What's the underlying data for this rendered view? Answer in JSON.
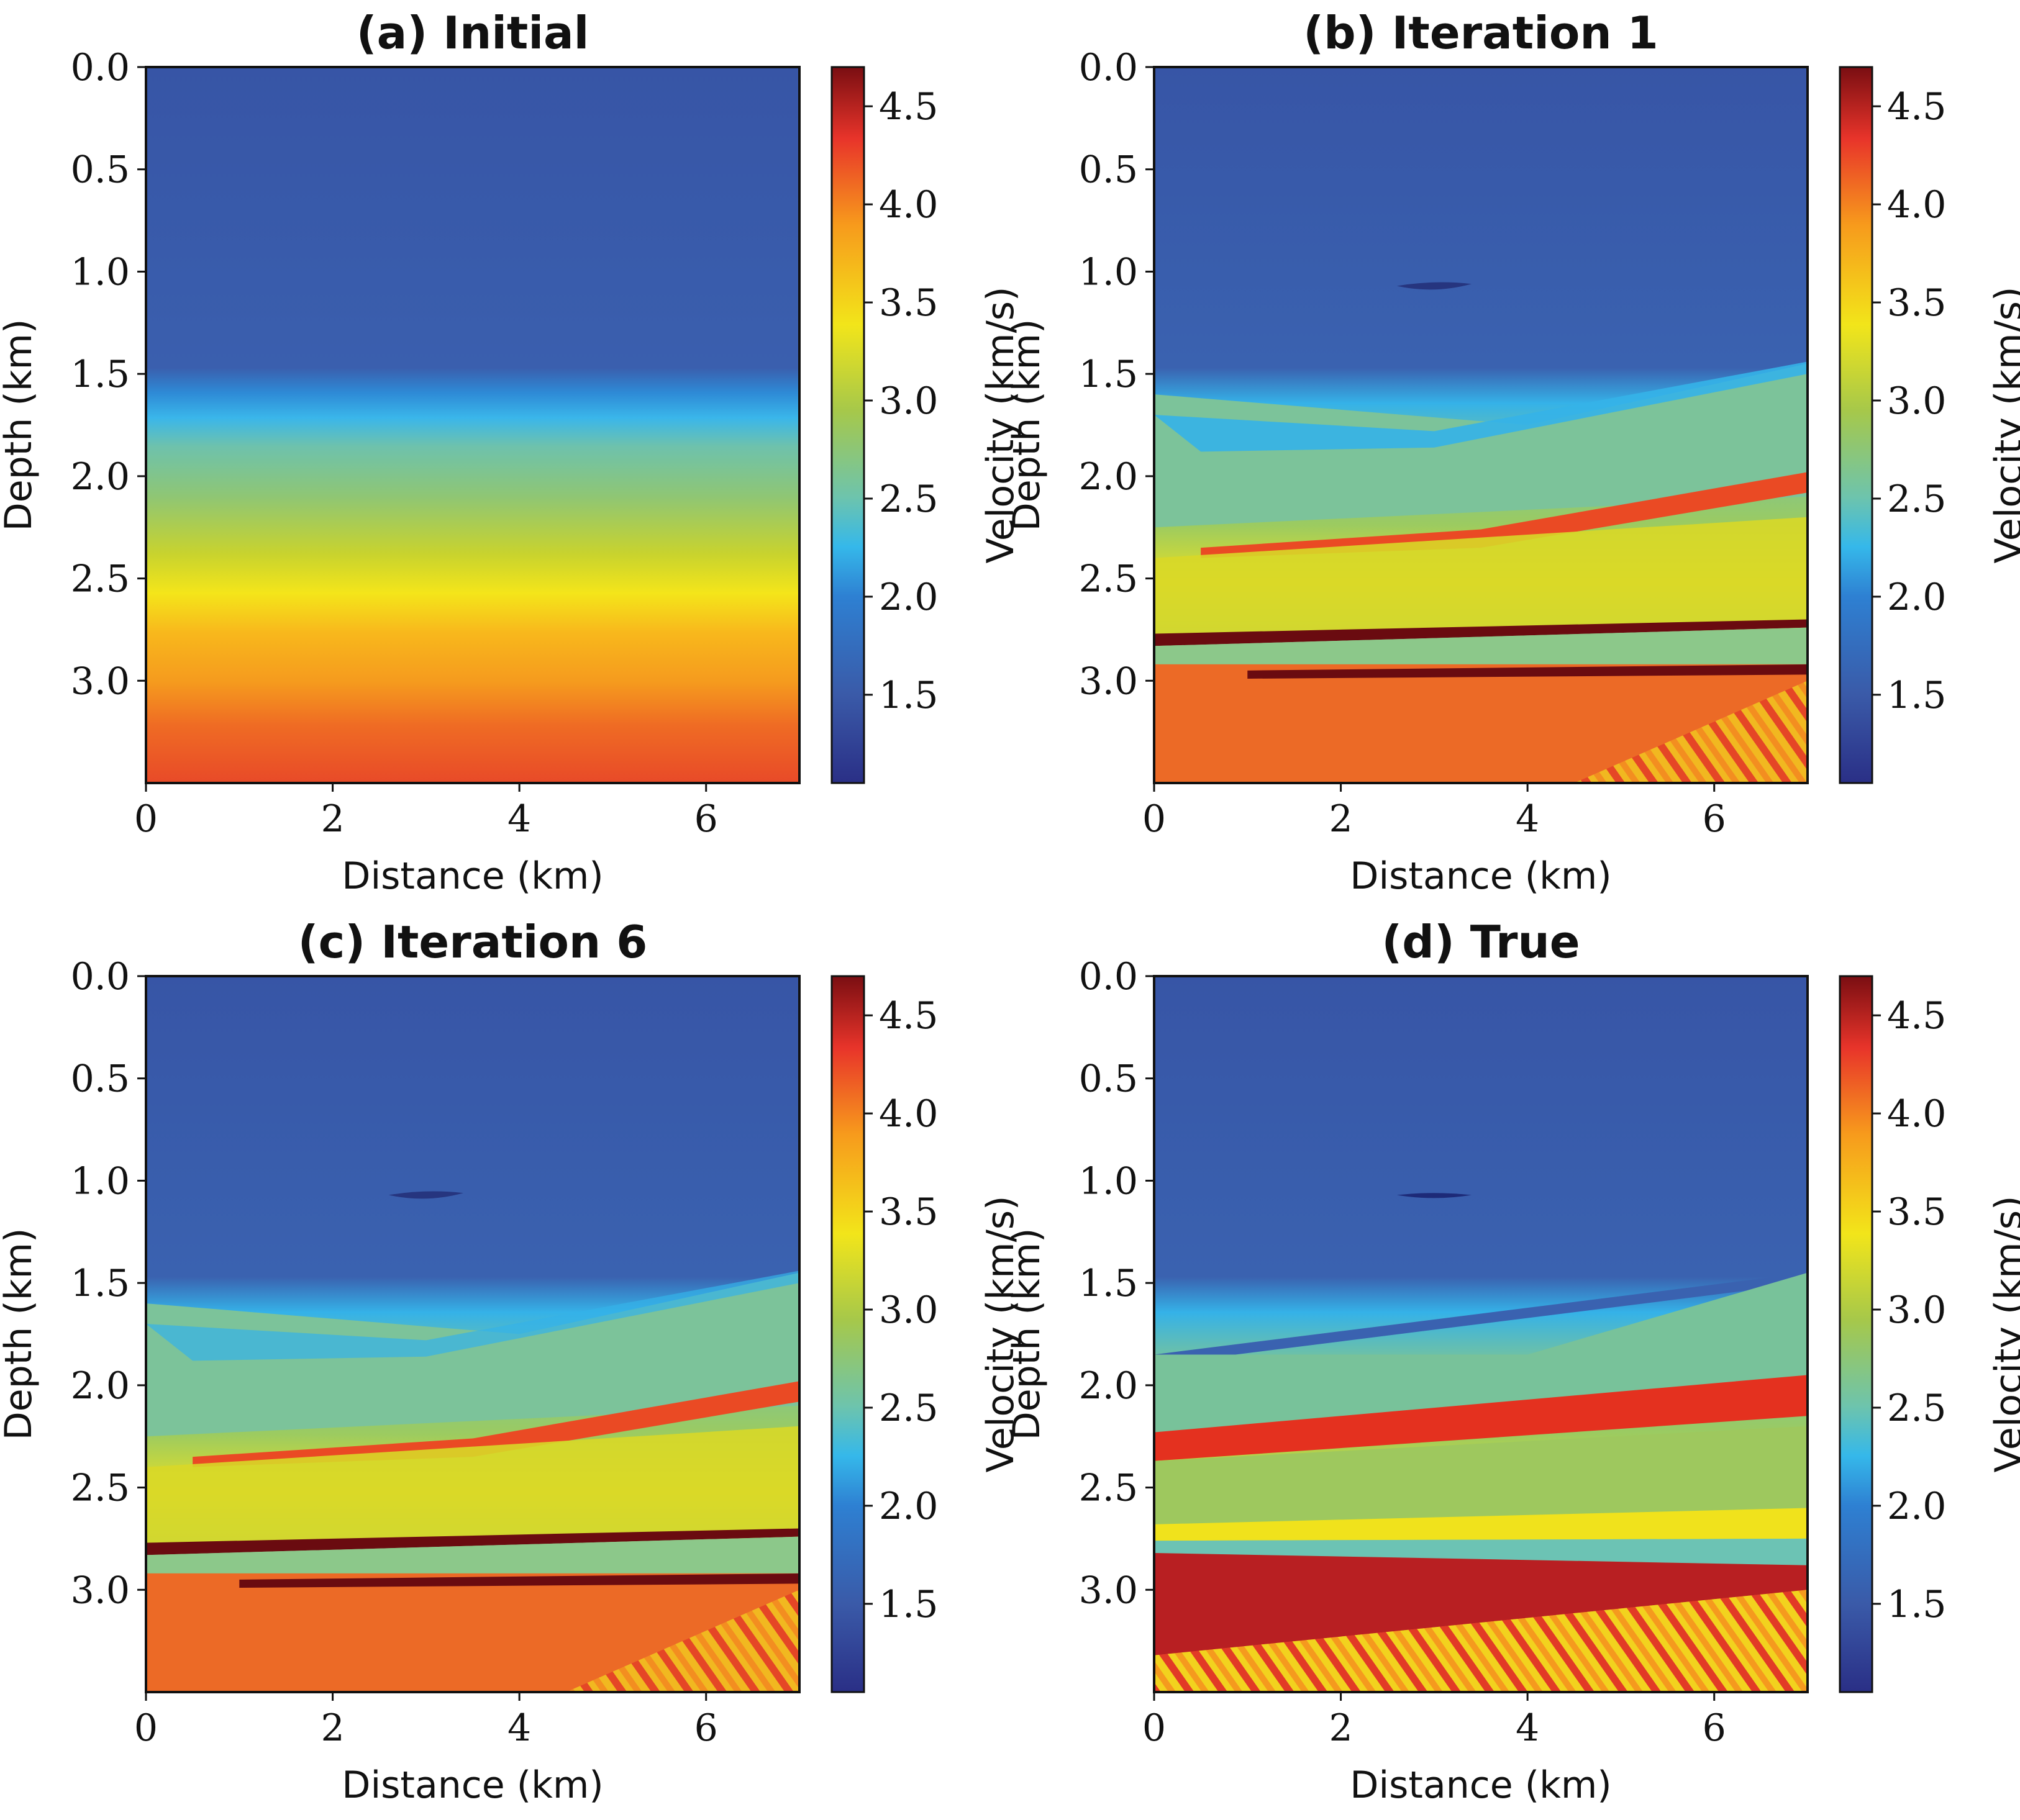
{
  "figure": {
    "panels": [
      {
        "title": "(a) Initial"
      },
      {
        "title": "(b) Iteration 1"
      },
      {
        "title": "(c) Iteration 6"
      },
      {
        "title": "(d) True"
      }
    ],
    "xlabel": "Distance (km)",
    "ylabel": "Depth (km)",
    "colorbar_label": "Velocity (km/s)"
  },
  "chart_data": [
    {
      "type": "heatmap",
      "title": "(a) Initial",
      "xlabel": "Distance (km)",
      "ylabel": "Depth (km)",
      "xlim": [
        0,
        7
      ],
      "ylim": [
        3.5,
        0
      ],
      "xticks": [
        0,
        2,
        4,
        6
      ],
      "yticks": [
        0.0,
        0.5,
        1.0,
        1.5,
        2.0,
        2.5,
        3.0
      ],
      "xtick_labels": [
        "0",
        "2",
        "4",
        "6"
      ],
      "ytick_labels": [
        "0.0",
        "0.5",
        "1.0",
        "1.5",
        "2.0",
        "2.5",
        "3.0"
      ],
      "colormap": "jet-like",
      "colorbar": {
        "label": "Velocity (km/s)",
        "range": [
          1.05,
          4.7
        ],
        "ticks": [
          1.5,
          2.0,
          2.5,
          3.0,
          3.5,
          4.0,
          4.5
        ],
        "tick_labels": [
          "1.5",
          "2.0",
          "2.5",
          "3.0",
          "3.5",
          "4.0",
          "4.5"
        ]
      },
      "velocity_profile": {
        "depth_km": [
          0.0,
          1.5,
          1.75,
          2.0,
          2.5,
          3.0,
          3.4,
          3.5
        ],
        "velocity_km_s": [
          1.6,
          1.6,
          2.3,
          2.9,
          3.5,
          3.9,
          4.2,
          4.2
        ]
      }
    },
    {
      "type": "heatmap",
      "title": "(b) Iteration 1",
      "xlabel": "Distance (km)",
      "ylabel": "Depth (km)",
      "xlim": [
        0,
        7
      ],
      "ylim": [
        3.5,
        0
      ],
      "xticks": [
        0,
        2,
        4,
        6
      ],
      "yticks": [
        0.0,
        0.5,
        1.0,
        1.5,
        2.0,
        2.5,
        3.0
      ],
      "xtick_labels": [
        "0",
        "2",
        "4",
        "6"
      ],
      "ytick_labels": [
        "0.0",
        "0.5",
        "1.0",
        "1.5",
        "2.0",
        "2.5",
        "3.0"
      ],
      "colormap": "jet-like",
      "colorbar": {
        "label": "Velocity (km/s)",
        "range": [
          1.05,
          4.7
        ],
        "ticks": [
          1.5,
          2.0,
          2.5,
          3.0,
          3.5,
          4.0,
          4.5
        ],
        "tick_labels": [
          "1.5",
          "2.0",
          "2.5",
          "3.0",
          "3.5",
          "4.0",
          "4.5"
        ]
      }
    },
    {
      "type": "heatmap",
      "title": "(c) Iteration 6",
      "xlabel": "Distance (km)",
      "ylabel": "Depth (km)",
      "xlim": [
        0,
        7
      ],
      "ylim": [
        3.5,
        0
      ],
      "xticks": [
        0,
        2,
        4,
        6
      ],
      "yticks": [
        0.0,
        0.5,
        1.0,
        1.5,
        2.0,
        2.5,
        3.0
      ],
      "xtick_labels": [
        "0",
        "2",
        "4",
        "6"
      ],
      "ytick_labels": [
        "0.0",
        "0.5",
        "1.0",
        "1.5",
        "2.0",
        "2.5",
        "3.0"
      ],
      "colormap": "jet-like",
      "colorbar": {
        "label": "Velocity (km/s)",
        "range": [
          1.05,
          4.7
        ],
        "ticks": [
          1.5,
          2.0,
          2.5,
          3.0,
          3.5,
          4.0,
          4.5
        ],
        "tick_labels": [
          "1.5",
          "2.0",
          "2.5",
          "3.0",
          "3.5",
          "4.0",
          "4.5"
        ]
      }
    },
    {
      "type": "heatmap",
      "title": "(d) True",
      "xlabel": "Distance (km)",
      "ylabel": "Depth (km)",
      "xlim": [
        0,
        7
      ],
      "ylim": [
        3.5,
        0
      ],
      "xticks": [
        0,
        2,
        4,
        6
      ],
      "yticks": [
        0.0,
        0.5,
        1.0,
        1.5,
        2.0,
        2.5,
        3.0
      ],
      "xtick_labels": [
        "0",
        "2",
        "4",
        "6"
      ],
      "ytick_labels": [
        "0.0",
        "0.5",
        "1.0",
        "1.5",
        "2.0",
        "2.5",
        "3.0"
      ],
      "colormap": "jet-like",
      "colorbar": {
        "label": "Velocity (km/s)",
        "range": [
          1.05,
          4.7
        ],
        "ticks": [
          1.5,
          2.0,
          2.5,
          3.0,
          3.5,
          4.0,
          4.5
        ],
        "tick_labels": [
          "1.5",
          "2.0",
          "2.5",
          "3.0",
          "3.5",
          "4.0",
          "4.5"
        ]
      }
    }
  ]
}
